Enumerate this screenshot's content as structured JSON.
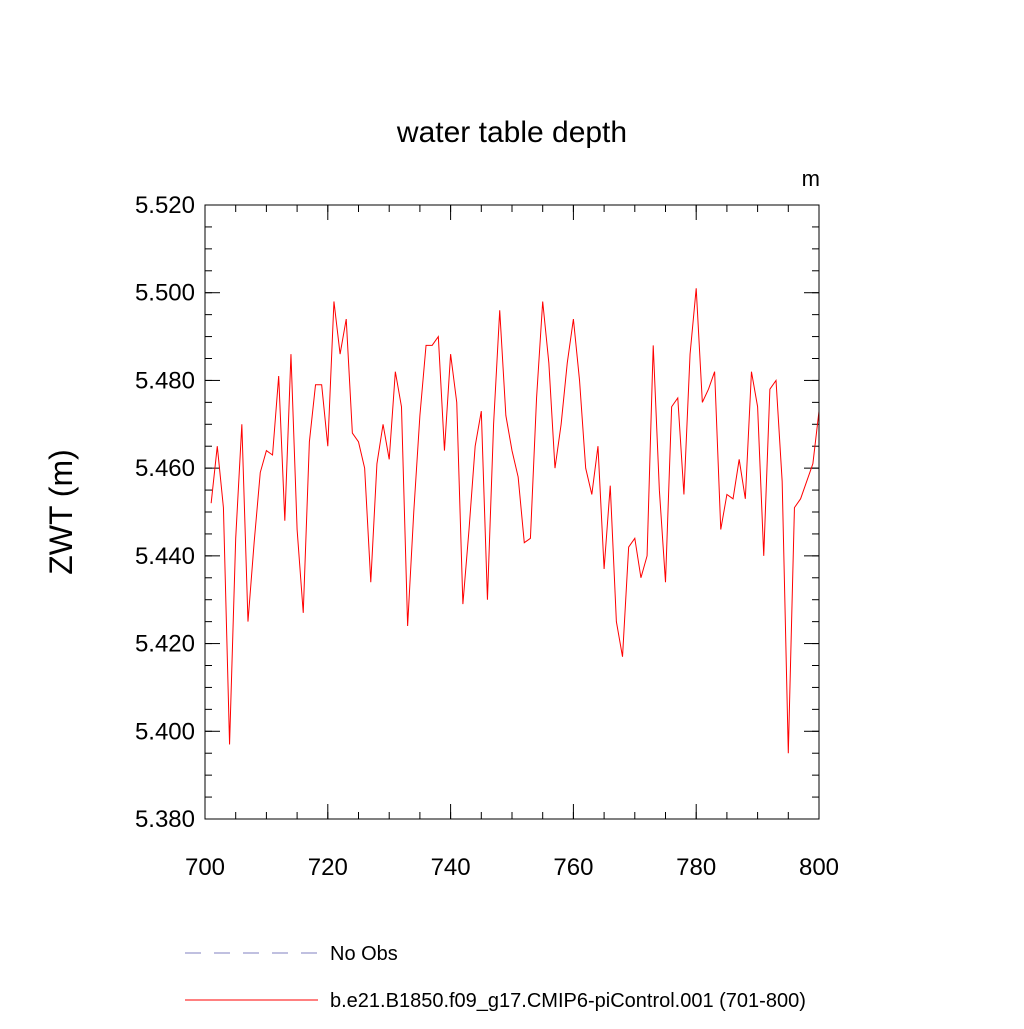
{
  "chart_data": {
    "type": "line",
    "title": "water table depth",
    "units": "m",
    "xlabel": "",
    "ylabel": "ZWT  (m)",
    "xlim": [
      700,
      800
    ],
    "ylim": [
      5.38,
      5.52
    ],
    "xticks": [
      700,
      720,
      740,
      760,
      780,
      800
    ],
    "xtick_labels": [
      "700",
      "720",
      "740",
      "760",
      "780",
      "800"
    ],
    "yticks": [
      5.38,
      5.4,
      5.42,
      5.44,
      5.46,
      5.48,
      5.5,
      5.52
    ],
    "ytick_labels": [
      "5.380",
      "5.400",
      "5.420",
      "5.440",
      "5.460",
      "5.480",
      "5.500",
      "5.520"
    ],
    "grid": false,
    "legend_position": "bottom",
    "series": [
      {
        "name": "No Obs",
        "color": "#8080c0",
        "style": "dashed",
        "values": []
      },
      {
        "name": "b.e21.B1850.f09_g17.CMIP6-piControl.001 (701-800)",
        "color": "#ff0000",
        "style": "solid",
        "x": [
          701,
          702,
          703,
          704,
          705,
          706,
          707,
          708,
          709,
          710,
          711,
          712,
          713,
          714,
          715,
          716,
          717,
          718,
          719,
          720,
          721,
          722,
          723,
          724,
          725,
          726,
          727,
          728,
          729,
          730,
          731,
          732,
          733,
          734,
          735,
          736,
          737,
          738,
          739,
          740,
          741,
          742,
          743,
          744,
          745,
          746,
          747,
          748,
          749,
          750,
          751,
          752,
          753,
          754,
          755,
          756,
          757,
          758,
          759,
          760,
          761,
          762,
          763,
          764,
          765,
          766,
          767,
          768,
          769,
          770,
          771,
          772,
          773,
          774,
          775,
          776,
          777,
          778,
          779,
          780,
          781,
          782,
          783,
          784,
          785,
          786,
          787,
          788,
          789,
          790,
          791,
          792,
          793,
          794,
          795,
          796,
          797,
          798,
          799,
          800
        ],
        "values": [
          5.452,
          5.465,
          5.451,
          5.397,
          5.444,
          5.47,
          5.425,
          5.443,
          5.459,
          5.464,
          5.463,
          5.481,
          5.448,
          5.486,
          5.446,
          5.427,
          5.466,
          5.479,
          5.479,
          5.465,
          5.498,
          5.486,
          5.494,
          5.468,
          5.466,
          5.46,
          5.434,
          5.461,
          5.47,
          5.462,
          5.482,
          5.474,
          5.424,
          5.45,
          5.472,
          5.488,
          5.488,
          5.49,
          5.464,
          5.486,
          5.475,
          5.429,
          5.446,
          5.465,
          5.473,
          5.43,
          5.47,
          5.496,
          5.472,
          5.464,
          5.458,
          5.443,
          5.444,
          5.476,
          5.498,
          5.484,
          5.46,
          5.47,
          5.484,
          5.494,
          5.48,
          5.46,
          5.454,
          5.465,
          5.437,
          5.456,
          5.425,
          5.417,
          5.442,
          5.444,
          5.435,
          5.44,
          5.488,
          5.455,
          5.434,
          5.474,
          5.476,
          5.454,
          5.486,
          5.501,
          5.475,
          5.478,
          5.482,
          5.446,
          5.454,
          5.453,
          5.462,
          5.453,
          5.482,
          5.474,
          5.44,
          5.478,
          5.48,
          5.457,
          5.395,
          5.451,
          5.453,
          5.457,
          5.461,
          5.473
        ]
      }
    ]
  }
}
